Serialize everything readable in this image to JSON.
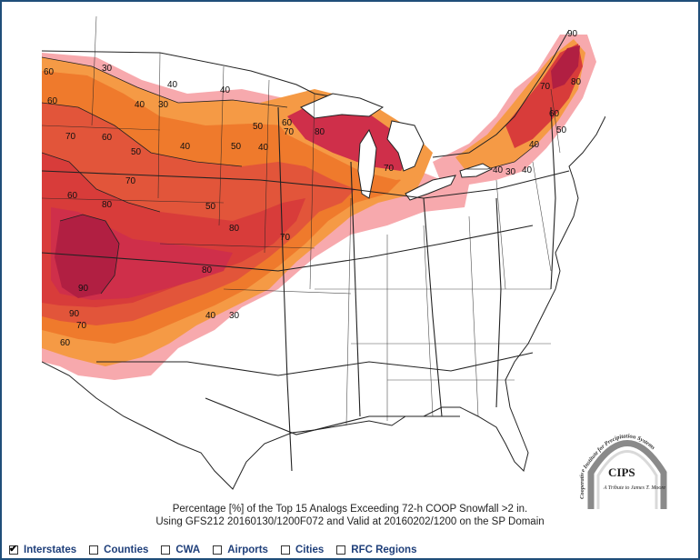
{
  "map": {
    "contour_labels": [
      {
        "id": "l1",
        "text": "60"
      },
      {
        "id": "l2",
        "text": "30"
      },
      {
        "id": "l3",
        "text": "60"
      },
      {
        "id": "l4",
        "text": "40"
      },
      {
        "id": "l5",
        "text": "40"
      },
      {
        "id": "l6",
        "text": "30"
      },
      {
        "id": "l7",
        "text": "40"
      },
      {
        "id": "l8",
        "text": "70"
      },
      {
        "id": "l9",
        "text": "60"
      },
      {
        "id": "l10",
        "text": "50"
      },
      {
        "id": "l11",
        "text": "40"
      },
      {
        "id": "l12",
        "text": "50"
      },
      {
        "id": "l13",
        "text": "40"
      },
      {
        "id": "l14",
        "text": "50"
      },
      {
        "id": "l15",
        "text": "60"
      },
      {
        "id": "l16",
        "text": "80"
      },
      {
        "id": "l17",
        "text": "70"
      },
      {
        "id": "l18",
        "text": "60"
      },
      {
        "id": "l19",
        "text": "80"
      },
      {
        "id": "l20",
        "text": "70"
      },
      {
        "id": "l21",
        "text": "50"
      },
      {
        "id": "l22",
        "text": "80"
      },
      {
        "id": "l23",
        "text": "90"
      },
      {
        "id": "l24",
        "text": "80"
      },
      {
        "id": "l25",
        "text": "90"
      },
      {
        "id": "l26",
        "text": "70"
      },
      {
        "id": "l27",
        "text": "60"
      },
      {
        "id": "l28",
        "text": "40"
      },
      {
        "id": "l29",
        "text": "30"
      },
      {
        "id": "l30",
        "text": "70"
      },
      {
        "id": "l31",
        "text": "40"
      },
      {
        "id": "l32",
        "text": "30"
      },
      {
        "id": "l33",
        "text": "40"
      },
      {
        "id": "l34",
        "text": "90"
      },
      {
        "id": "l35",
        "text": "70"
      },
      {
        "id": "l36",
        "text": "80"
      },
      {
        "id": "l37",
        "text": "60"
      },
      {
        "id": "l38",
        "text": "50"
      },
      {
        "id": "l39",
        "text": "40"
      },
      {
        "id": "l40",
        "text": "70"
      }
    ],
    "colors": {
      "pct30": "#f7a9ad",
      "pct40": "#f59a45",
      "pct50": "#ef7a2c",
      "pct60": "#e2553a",
      "pct70": "#d83c3a",
      "pct80": "#cf2f4a",
      "pct90": "#b11f42",
      "lines": "#222222"
    }
  },
  "caption": {
    "line1": "Percentage [%] of the Top 15 Analogs Exceeding 72-h COOP Snowfall >2 in.",
    "line2": "Using GFS212 20160130/1200F072 and Valid at 20160202/1200 on the SP Domain"
  },
  "logo": {
    "arc_text": "Cooperative Institute for Precipitation Systems",
    "name": "CIPS",
    "tribute": "A Tribute to James T. Moore"
  },
  "layers": [
    {
      "id": "interstates",
      "label": "Interstates",
      "checked": true
    },
    {
      "id": "counties",
      "label": "Counties",
      "checked": false
    },
    {
      "id": "cwa",
      "label": "CWA",
      "checked": false
    },
    {
      "id": "airports",
      "label": "Airports",
      "checked": false
    },
    {
      "id": "cities",
      "label": "Cities",
      "checked": false
    },
    {
      "id": "rfc",
      "label": "RFC Regions",
      "checked": false
    }
  ]
}
